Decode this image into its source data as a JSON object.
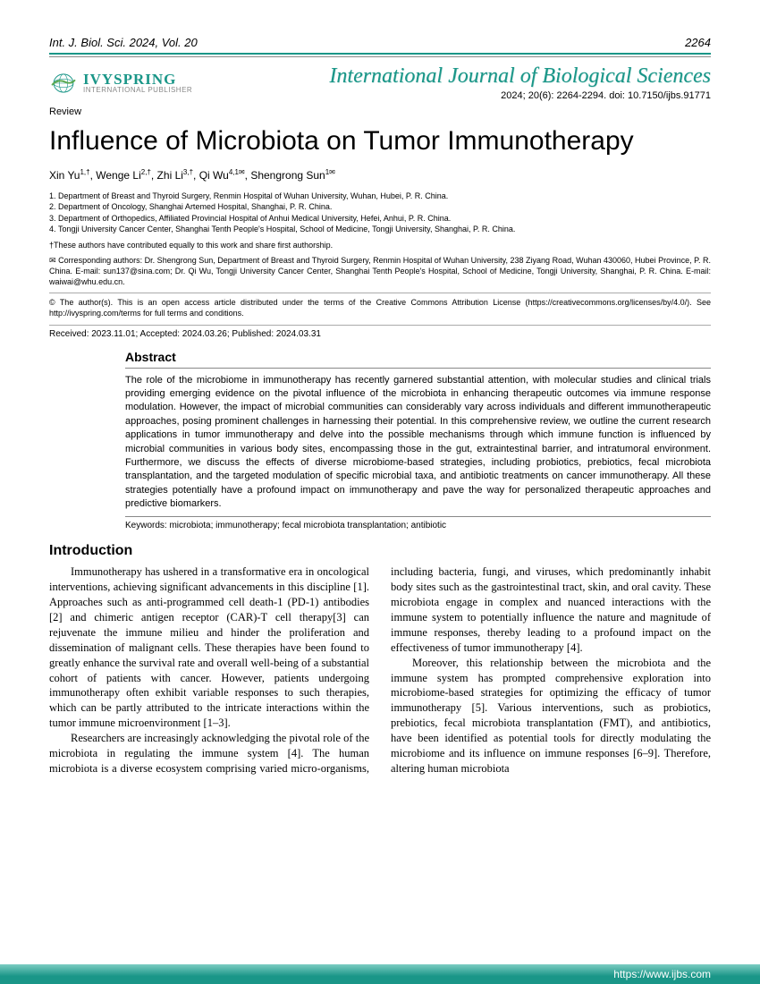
{
  "header": {
    "journal_ref": "Int. J. Biol. Sci. 2024, Vol. 20",
    "page_num": "2264"
  },
  "logo": {
    "main": "IVYSPRING",
    "sub": "INTERNATIONAL PUBLISHER"
  },
  "journal_title": "International Journal of Biological Sciences",
  "citation": "2024; 20(6): 2264-2294. doi: 10.7150/ijbs.91771",
  "review_label": "Review",
  "title": "Influence of Microbiota on Tumor Immunotherapy",
  "authors_html": "Xin Yu<sup>1,†</sup>, Wenge Li<sup>2,†</sup>, Zhi Li<sup>3,†</sup>, Qi Wu<sup>4,1✉</sup>, Shengrong Sun<sup>1✉</sup>",
  "affiliations": [
    "Department of Breast and Thyroid Surgery, Renmin Hospital of Wuhan University, Wuhan, Hubei, P. R. China.",
    "Department of Oncology, Shanghai Artemed Hospital, Shanghai, P. R. China.",
    "Department of Orthopedics, Affiliated Provincial Hospital of Anhui Medical University, Hefei, Anhui, P. R. China.",
    "Tongji University Cancer Center, Shanghai Tenth People's Hospital, School of Medicine, Tongji University, Shanghai, P. R. China."
  ],
  "equal_contrib": "†These authors have contributed equally to this work and share first authorship.",
  "corresponding": "✉ Corresponding authors: Dr. Shengrong Sun, Department of Breast and Thyroid Surgery, Renmin Hospital of Wuhan University, 238 Ziyang Road, Wuhan 430060, Hubei Province, P. R. China. E-mail: sun137@sina.com; Dr. Qi Wu, Tongji University Cancer Center, Shanghai Tenth People's Hospital, School of Medicine, Tongji University, Shanghai, P. R. China. E-mail: waiwai@whu.edu.cn.",
  "license": "© The author(s). This is an open access article distributed under the terms of the Creative Commons Attribution License (https://creativecommons.org/licenses/by/4.0/). See http://ivyspring.com/terms for full terms and conditions.",
  "dates": "Received: 2023.11.01; Accepted: 2024.03.26; Published: 2024.03.31",
  "abstract": {
    "heading": "Abstract",
    "text": "The role of the microbiome in immunotherapy has recently garnered substantial attention, with molecular studies and clinical trials providing emerging evidence on the pivotal influence of the microbiota in enhancing therapeutic outcomes via immune response modulation. However, the impact of microbial communities can considerably vary across individuals and different immunotherapeutic approaches, posing prominent challenges in harnessing their potential. In this comprehensive review, we outline the current research applications in tumor immunotherapy and delve into the possible mechanisms through which immune function is influenced by microbial communities in various body sites, encompassing those in the gut, extraintestinal barrier, and intratumoral environment. Furthermore, we discuss the effects of diverse microbiome-based strategies, including probiotics, prebiotics, fecal microbiota transplantation, and the targeted modulation of specific microbial taxa, and antibiotic treatments on cancer immunotherapy. All these strategies potentially have a profound impact on immunotherapy and pave the way for personalized therapeutic approaches and predictive biomarkers.",
    "keywords": "Keywords: microbiota; immunotherapy; fecal microbiota transplantation; antibiotic"
  },
  "intro": {
    "heading": "Introduction",
    "p1": "Immunotherapy has ushered in a transformative era in oncological interventions, achieving significant advancements in this discipline [1]. Approaches such as anti-programmed cell death-1 (PD-1) antibodies [2] and chimeric antigen receptor (CAR)-T cell therapy[3] can rejuvenate the immune milieu and hinder the proliferation and dissemination of malignant cells. These therapies have been found to greatly enhance the survival rate and overall well-being of a substantial cohort of patients with cancer. However, patients undergoing immunotherapy often exhibit variable responses to such therapies, which can be partly attributed to the intricate interactions within the tumor immune microenvironment [1–3].",
    "p2": "Researchers are increasingly acknowledging the pivotal role of the microbiota in regulating the immune system [4]. The human microbiota is a diverse ecosystem comprising varied micro-organisms, including bacteria, fungi, and viruses, which predominantly inhabit body sites such as the gastrointestinal tract, skin, and oral cavity. These microbiota engage in complex and nuanced interactions with the immune system to potentially influence the nature and magnitude of immune responses, thereby leading to a profound impact on the effectiveness of tumor immunotherapy [4].",
    "p3": "Moreover, this relationship between the microbiota and the immune system has prompted comprehensive exploration into microbiome-based strategies for optimizing the efficacy of tumor immunotherapy [5]. Various interventions, such as probiotics, prebiotics, fecal microbiota transplantation (FMT), and antibiotics, have been identified as potential tools for directly modulating the microbiome and its influence on immune responses [6–9]. Therefore, altering human microbiota"
  },
  "footer_url": "https://www.ijbs.com",
  "colors": {
    "accent": "#1a9688",
    "footer_gradient_top": "#7cccc2",
    "text": "#000000",
    "background": "#ffffff"
  }
}
